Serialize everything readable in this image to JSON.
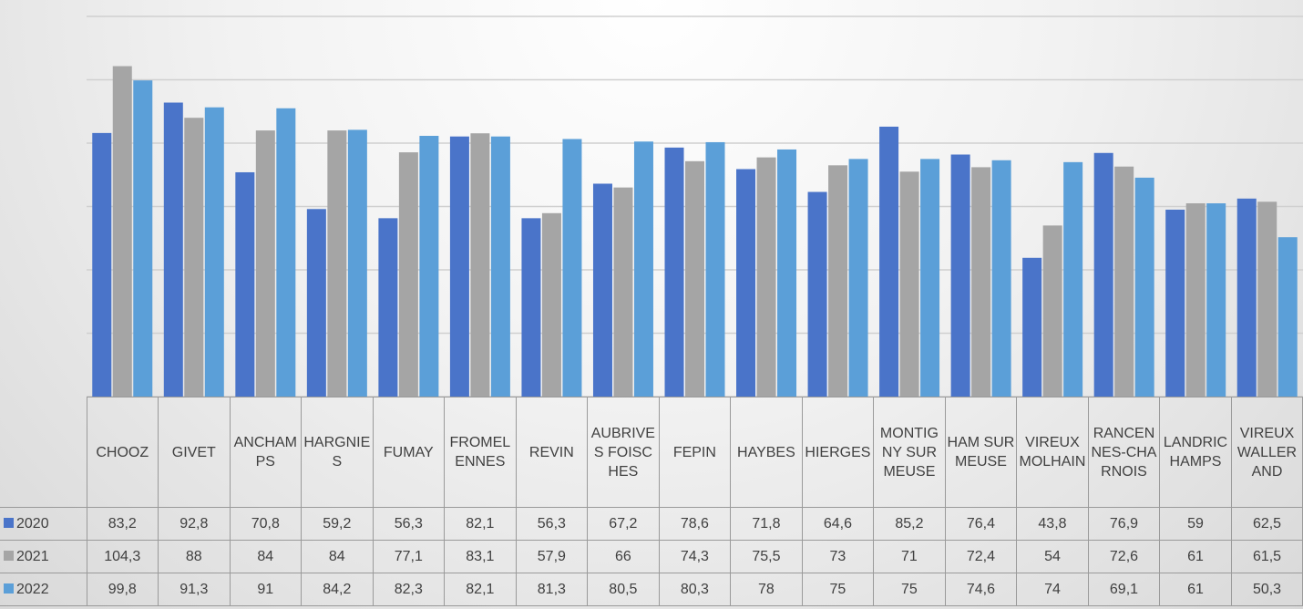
{
  "chart_data": {
    "type": "bar",
    "categories": [
      "CHOOZ",
      "GIVET",
      "ANCHAMPS",
      "HARGNIES",
      "FUMAY",
      "FROMELENNES",
      "REVIN",
      "AUBRIVES FOISCHES",
      "FEPIN",
      "HAYBES",
      "HIERGES",
      "MONTIGNY SUR MEUSE",
      "HAM SUR MEUSE",
      "VIREUX MOLHAIN",
      "RANCENNES-CHARNOIS",
      "LANDRICHAMPS",
      "VIREUX WALLERAND"
    ],
    "series": [
      {
        "name": "2020",
        "color": "#4a74c9",
        "values": [
          83.2,
          92.8,
          70.8,
          59.2,
          56.3,
          82.1,
          56.3,
          67.2,
          78.6,
          71.8,
          64.6,
          85.2,
          76.4,
          43.8,
          76.9,
          59,
          62.5
        ],
        "value_labels": [
          "83,2",
          "92,8",
          "70,8",
          "59,2",
          "56,3",
          "82,1",
          "56,3",
          "67,2",
          "78,6",
          "71,8",
          "64,6",
          "85,2",
          "76,4",
          "43,8",
          "76,9",
          "59",
          "62,5"
        ]
      },
      {
        "name": "2021",
        "color": "#a5a5a5",
        "values": [
          104.3,
          88,
          84,
          84,
          77.1,
          83.1,
          57.9,
          66,
          74.3,
          75.5,
          73,
          71,
          72.4,
          54,
          72.6,
          61,
          61.5
        ],
        "value_labels": [
          "104,3",
          "88",
          "84",
          "84",
          "77,1",
          "83,1",
          "57,9",
          "66",
          "74,3",
          "75,5",
          "73",
          "71",
          "72,4",
          "54",
          "72,6",
          "61",
          "61,5"
        ]
      },
      {
        "name": "2022",
        "color": "#5b9fd8",
        "values": [
          99.8,
          91.3,
          91,
          84.2,
          82.3,
          82.1,
          81.3,
          80.5,
          80.3,
          78,
          75,
          75,
          74.6,
          74,
          69.1,
          61,
          50.3
        ],
        "value_labels": [
          "99,8",
          "91,3",
          "91",
          "84,2",
          "82,3",
          "82,1",
          "81,3",
          "80,5",
          "80,3",
          "78",
          "75",
          "75",
          "74,6",
          "74",
          "69,1",
          "61",
          "50,3"
        ]
      }
    ],
    "ylim": [
      0,
      120
    ],
    "yticks": [
      0,
      20,
      40,
      60,
      80,
      100,
      120
    ],
    "grid": true
  }
}
